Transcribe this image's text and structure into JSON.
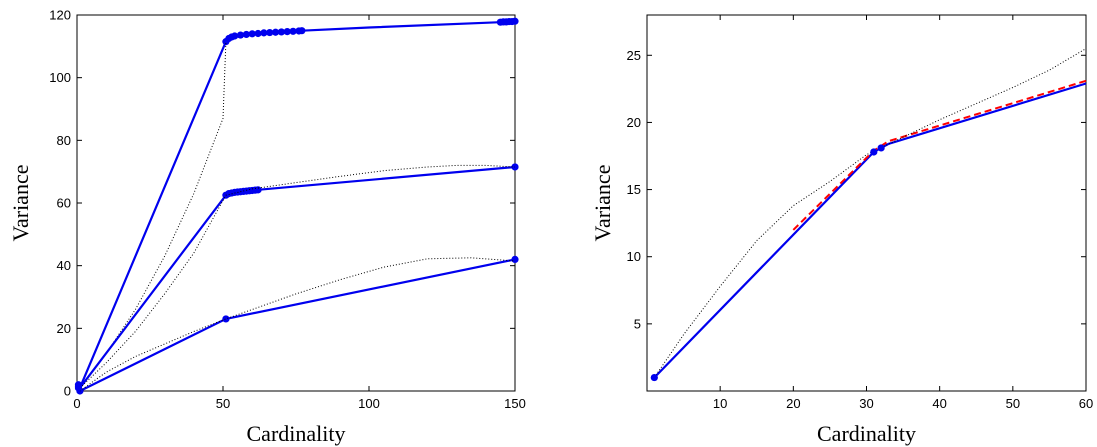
{
  "chart_data": [
    {
      "type": "line",
      "title": "",
      "xlabel": "Cardinality",
      "ylabel": "Variance",
      "xlim": [
        0,
        150
      ],
      "ylim": [
        0,
        120
      ],
      "xticks": [
        "0",
        "50",
        "100",
        "150"
      ],
      "yticks": [
        "0",
        "20",
        "40",
        "60",
        "80",
        "100",
        "120"
      ],
      "grid": false,
      "legend": "none",
      "colors": {
        "solid": "#0000ee",
        "dotted": "#000000"
      },
      "series": [
        {
          "style": "solid",
          "x": [
            1,
            51,
            52,
            55,
            60,
            70,
            77,
            100,
            145,
            150
          ],
          "y": [
            1,
            111.5,
            112.5,
            113.5,
            114,
            114.6,
            115,
            116,
            117.7,
            118
          ]
        },
        {
          "style": "markers",
          "x": [
            51,
            52,
            53,
            54,
            56,
            58,
            60,
            62,
            64,
            66,
            68,
            70,
            72,
            74,
            76,
            77,
            145,
            146,
            147,
            148,
            149,
            150
          ],
          "y": [
            111.5,
            112.5,
            113,
            113.3,
            113.6,
            113.8,
            114,
            114.1,
            114.3,
            114.4,
            114.5,
            114.6,
            114.7,
            114.8,
            114.9,
            115,
            117.7,
            117.8,
            117.8,
            117.9,
            117.9,
            118
          ]
        },
        {
          "style": "dotted",
          "x": [
            1,
            10,
            20,
            30,
            40,
            50,
            51
          ],
          "y": [
            1,
            12,
            26,
            43,
            63,
            87,
            111.5
          ]
        },
        {
          "style": "solid",
          "x": [
            1,
            51,
            52,
            55,
            60,
            62,
            150
          ],
          "y": [
            1,
            62.5,
            63,
            63.5,
            64,
            64.2,
            71.5
          ]
        },
        {
          "style": "markers",
          "x": [
            51,
            52,
            53,
            54,
            55,
            56,
            57,
            58,
            59,
            60,
            61,
            62,
            150
          ],
          "y": [
            62.5,
            63,
            63.2,
            63.4,
            63.5,
            63.6,
            63.7,
            63.8,
            63.9,
            64,
            64.1,
            64.2,
            71.5
          ]
        },
        {
          "style": "dotted",
          "x": [
            1,
            10,
            20,
            30,
            40,
            51,
            60,
            75,
            90,
            105,
            120,
            130,
            140,
            150
          ],
          "y": [
            1,
            9,
            19,
            31,
            44,
            62.5,
            64.5,
            66.5,
            68.5,
            70.3,
            71.5,
            72,
            72,
            71.5
          ]
        },
        {
          "style": "solid",
          "x": [
            1,
            51,
            150
          ],
          "y": [
            0,
            23,
            42
          ]
        },
        {
          "style": "markers",
          "x": [
            1,
            51,
            150
          ],
          "y": [
            0,
            23,
            42
          ]
        },
        {
          "style": "dotted",
          "x": [
            1,
            10,
            20,
            30,
            40,
            51,
            60,
            75,
            90,
            105,
            120,
            135,
            150
          ],
          "y": [
            0,
            6,
            11,
            15,
            19,
            23,
            26,
            31,
            35.5,
            39.5,
            42.2,
            42.5,
            41.5
          ]
        },
        {
          "style": "markers",
          "x": [
            0.5,
            0.5,
            0.5
          ],
          "y": [
            1,
            2,
            1.5
          ]
        }
      ]
    },
    {
      "type": "line",
      "title": "",
      "xlabel": "Cardinality",
      "ylabel": "Variance",
      "xlim": [
        0,
        60
      ],
      "ylim": [
        0,
        28
      ],
      "xticks": [
        "10",
        "20",
        "30",
        "40",
        "50",
        "60"
      ],
      "yticks": [
        "5",
        "10",
        "15",
        "20",
        "25"
      ],
      "grid": false,
      "legend": "none",
      "colors": {
        "solid": "#0000ee",
        "dashed": "#ff0000",
        "dotted": "#000000"
      },
      "series": [
        {
          "style": "solid",
          "x": [
            1,
            31,
            32,
            33,
            60
          ],
          "y": [
            1,
            17.8,
            18.1,
            18.4,
            22.9
          ]
        },
        {
          "style": "dashed",
          "x": [
            20,
            31,
            33,
            60
          ],
          "y": [
            12,
            17.9,
            18.6,
            23.1
          ]
        },
        {
          "style": "dotted",
          "x": [
            1,
            5,
            10,
            15,
            20,
            25,
            30,
            35,
            40,
            45,
            50,
            55,
            60
          ],
          "y": [
            1,
            4.2,
            7.8,
            11.2,
            13.8,
            15.6,
            17.6,
            18.9,
            20.2,
            21.4,
            22.6,
            23.9,
            25.5
          ]
        },
        {
          "style": "markers",
          "x": [
            1,
            31,
            32
          ],
          "y": [
            1,
            17.8,
            18.1
          ]
        }
      ]
    }
  ]
}
